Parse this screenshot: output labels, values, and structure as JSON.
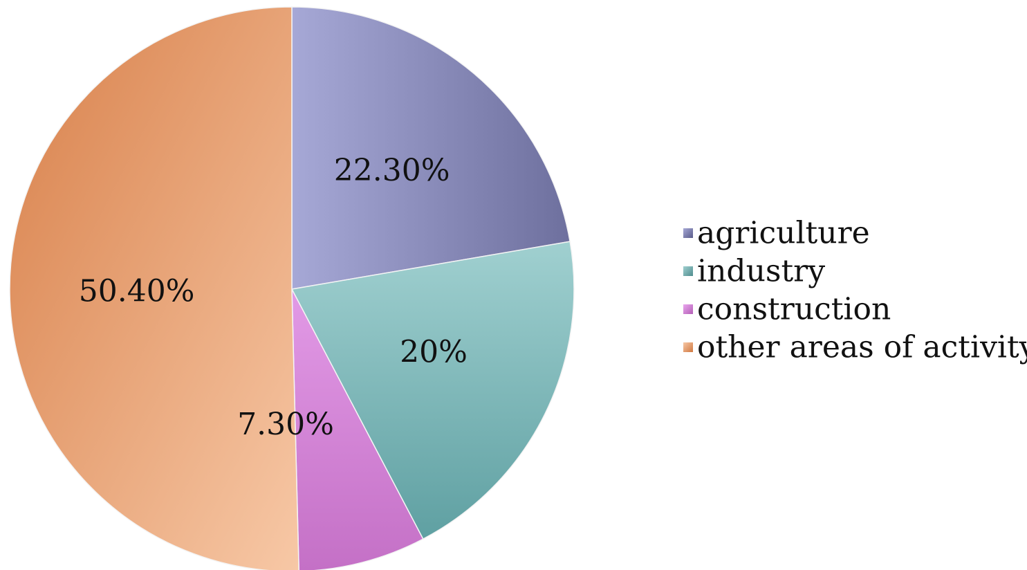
{
  "chart_data": {
    "type": "pie",
    "title": "",
    "categories": [
      "agriculture",
      "industry",
      "construction",
      "other areas of activity"
    ],
    "values": [
      22.3,
      20,
      7.3,
      50.4
    ],
    "data_labels": [
      "22.30%",
      "20%",
      "7.30%",
      "50.40%"
    ],
    "legend": {
      "position": "right",
      "entries": [
        "agriculture",
        "industry",
        "construction",
        "other areas of activity"
      ]
    },
    "colors": [
      "#8a8cc0",
      "#7fbdbd",
      "#d283d6",
      "#f0a878"
    ]
  }
}
